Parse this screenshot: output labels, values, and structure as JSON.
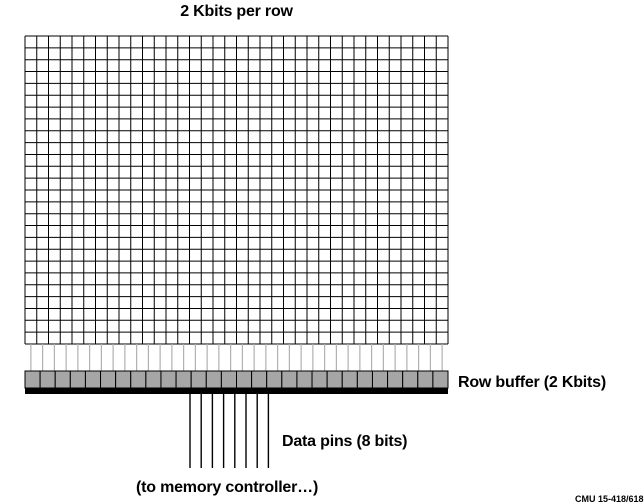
{
  "labels": {
    "row_width": "2 Kbits per row",
    "row_buffer": "Row buffer (2 Kbits)",
    "data_pins": "Data pins (8 bits)",
    "to_controller": "(to memory controller…)",
    "footer": "CMU 15-418/618"
  },
  "colors": {
    "grid_line": "#000000",
    "cell_fill": "#ffffff",
    "sense_line": "#b0b0b0",
    "buffer_cell": "#a6a6a6",
    "buffer_bar": "#000000"
  }
}
